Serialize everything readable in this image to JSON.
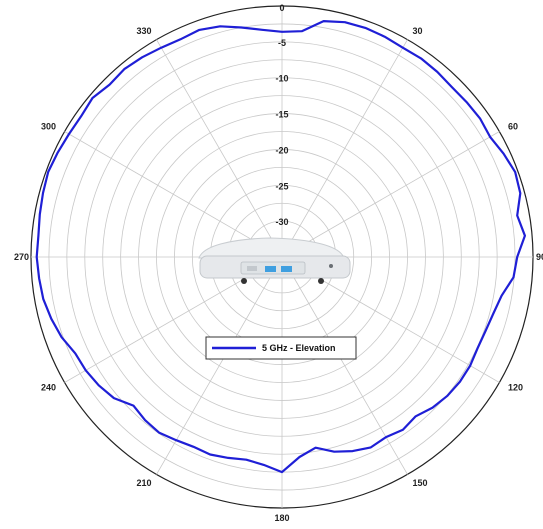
{
  "chart_data": {
    "type": "polar-line",
    "title": "",
    "angle_labels": [
      "0",
      "30",
      "60",
      "90",
      "120",
      "150",
      "180",
      "210",
      "240",
      "270",
      "300",
      "330"
    ],
    "angle_values": [
      0,
      30,
      60,
      90,
      120,
      150,
      180,
      210,
      240,
      270,
      300,
      330
    ],
    "radial_tick_labels": [
      "-5",
      "-10",
      "-15",
      "-20",
      "-25",
      "-30"
    ],
    "radial_ticks": [
      -5,
      -10,
      -15,
      -20,
      -25,
      -30
    ],
    "radial_range": [
      -35,
      0
    ],
    "grid": true,
    "legend_position": "center-lower",
    "series": [
      {
        "name": "5 GHz - Elevation",
        "color": "#1f1fd6",
        "angles": [
          0,
          5,
          10,
          15,
          20,
          25,
          30,
          35,
          40,
          45,
          50,
          55,
          60,
          65,
          70,
          75,
          80,
          85,
          90,
          95,
          100,
          105,
          110,
          115,
          120,
          125,
          130,
          135,
          140,
          145,
          150,
          155,
          160,
          165,
          170,
          175,
          180,
          185,
          190,
          195,
          200,
          205,
          210,
          215,
          220,
          225,
          230,
          235,
          240,
          245,
          250,
          255,
          260,
          265,
          270,
          275,
          280,
          285,
          290,
          295,
          300,
          305,
          310,
          315,
          320,
          325,
          330,
          335,
          340,
          345,
          350,
          355
        ],
        "values": [
          -3.6,
          -3.4,
          -1.6,
          -1.1,
          -1.0,
          -1.1,
          -1.3,
          -1.2,
          -1.3,
          -1.5,
          -1.4,
          -1.3,
          -1.5,
          -0.9,
          -0.4,
          -0.6,
          -1.7,
          -1.0,
          -2.2,
          -2.6,
          -3.9,
          -4.5,
          -4.8,
          -4.9,
          -4.7,
          -4.7,
          -4.9,
          -5.3,
          -6.0,
          -5.6,
          -6.0,
          -5.7,
          -6.2,
          -6.9,
          -8.0,
          -7.0,
          -5.0,
          -5.9,
          -6.3,
          -6.0,
          -5.7,
          -5.8,
          -5.5,
          -5.1,
          -5.3,
          -5.7,
          -4.4,
          -3.8,
          -3.4,
          -3.2,
          -2.3,
          -1.7,
          -1.2,
          -1.0,
          -0.8,
          -0.9,
          -0.7,
          -0.5,
          -0.3,
          -0.5,
          -0.7,
          -0.8,
          -0.5,
          -1.0,
          -0.8,
          -1.0,
          -1.3,
          -1.5,
          -1.3,
          -1.7,
          -2.5,
          -3.2
        ]
      }
    ]
  }
}
